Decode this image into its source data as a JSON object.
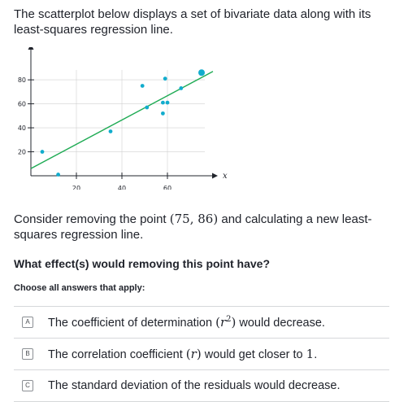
{
  "intro": "The scatterplot below displays a set of bivariate data along with its least-squares regression line.",
  "chart_data": {
    "type": "scatter",
    "xlabel": "x",
    "ylabel": "y",
    "xlim": [
      0,
      80
    ],
    "ylim": [
      0,
      95
    ],
    "xticks": [
      20,
      40,
      60
    ],
    "yticks": [
      20,
      40,
      60,
      80
    ],
    "points": [
      {
        "x": 5,
        "y": 20
      },
      {
        "x": 12,
        "y": 1
      },
      {
        "x": 35,
        "y": 37
      },
      {
        "x": 49,
        "y": 75
      },
      {
        "x": 51,
        "y": 57
      },
      {
        "x": 58,
        "y": 52
      },
      {
        "x": 58,
        "y": 61
      },
      {
        "x": 60,
        "y": 61
      },
      {
        "x": 59,
        "y": 81
      },
      {
        "x": 66,
        "y": 73
      },
      {
        "x": 75,
        "y": 86,
        "highlight": true
      }
    ],
    "regression_line": {
      "x1": 0,
      "y1": 6,
      "x2": 80,
      "y2": 87
    },
    "colors": {
      "point": "#11accd",
      "line": "#1fab54",
      "axis": "#21242c",
      "grid": "#d0d0d0"
    }
  },
  "paragraph": {
    "before": "Consider removing the point ",
    "math": "(75, 86)",
    "after": " and calculating a new least-squares regression line."
  },
  "question": "What effect(s) would removing this point have?",
  "instruction": "Choose all answers that apply:",
  "choices": [
    {
      "letter": "A",
      "before": "The coefficient of determination ",
      "math_var": "r",
      "math_sup": "2",
      "after": " would decrease."
    },
    {
      "letter": "B",
      "before": "The correlation coefficient ",
      "math_var": "r",
      "after": " would get closer to ",
      "math_end": "1",
      "end": "."
    },
    {
      "letter": "C",
      "text": "The standard deviation of the residuals would decrease."
    }
  ]
}
